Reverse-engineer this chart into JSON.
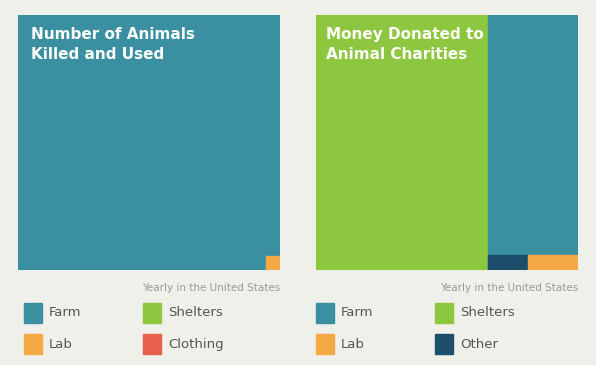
{
  "chart1_title": "Number of Animals\nKilled and Used",
  "chart2_title": "Money Donated to\nAnimal Charities",
  "subtitle": "Yearly in the United States",
  "colors": {
    "farm": "#3a8fa0",
    "shelters": "#8dc63f",
    "lab": "#f5a944",
    "clothing": "#e8604c",
    "other": "#1d4e6b"
  },
  "background_color": "#f0f0eb",
  "title_color": "#ffffff",
  "subtitle_color": "#999999",
  "legend_text_color": "#555555",
  "title_fontsize": 11,
  "subtitle_fontsize": 7.5,
  "legend_fontsize": 9.5
}
